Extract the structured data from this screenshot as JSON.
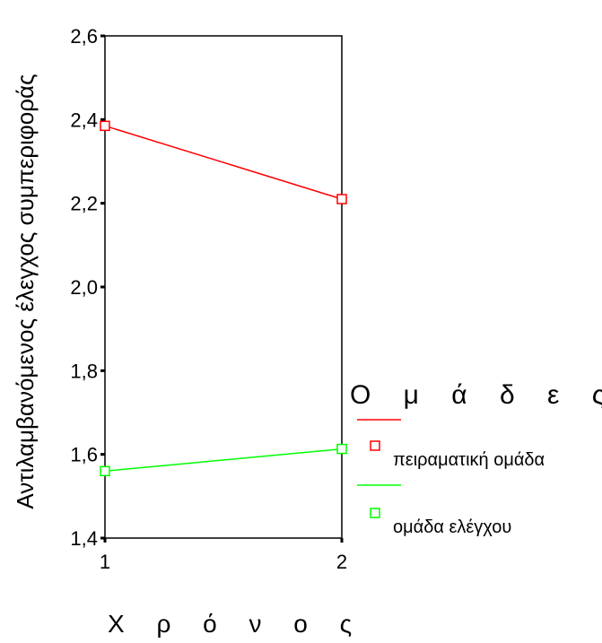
{
  "chart_data": {
    "type": "line",
    "title": "",
    "xlabel": "Χ ρ ό ν ο ς",
    "ylabel": "Αντιλαμβανόμενος έλεγχος συμπεριφοράς",
    "categories": [
      "1",
      "2"
    ],
    "ylim": [
      1.4,
      2.6
    ],
    "yticks": [
      "1,4",
      "1,6",
      "1,8",
      "2,0",
      "2,2",
      "2,4",
      "2,6"
    ],
    "ytick_values": [
      1.4,
      1.6,
      1.8,
      2.0,
      2.2,
      2.4,
      2.6
    ],
    "grid": false,
    "legend_position": "right",
    "legend_title": "Ο μ ά δ ε ς",
    "series": [
      {
        "name": "πειραματική ομάδα",
        "values": [
          2.385,
          2.21
        ],
        "color": "#ff0000",
        "marker": "square-open"
      },
      {
        "name": "ομάδα ελέγχου",
        "values": [
          1.56,
          1.613
        ],
        "color": "#00ff00",
        "marker": "square-open"
      }
    ]
  }
}
